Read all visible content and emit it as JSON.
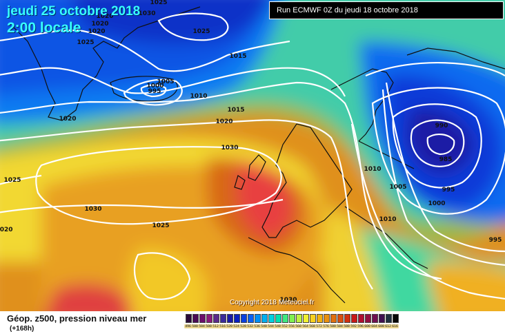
{
  "header": {
    "date": "jeudi 25 octobre 2018",
    "time": "2:00 locale",
    "run": "Run ECMWF 0Z du jeudi 18 octobre 2018"
  },
  "copyright": "Copyright 2018 Meteociel.fr",
  "footer": {
    "title": "Géop. z500, pression niveau mer",
    "subtitle": "(+168h)"
  },
  "legend": {
    "values": [
      "496",
      "500",
      "504",
      "508",
      "512",
      "516",
      "520",
      "524",
      "528",
      "532",
      "536",
      "540",
      "544",
      "548",
      "552",
      "556",
      "560",
      "564",
      "568",
      "572",
      "576",
      "580",
      "584",
      "588",
      "592",
      "596",
      "600",
      "604",
      "608",
      "612",
      "616"
    ],
    "colors": [
      "#2a0a3a",
      "#4b0b55",
      "#6b0f6b",
      "#8a1a7a",
      "#5a2a8a",
      "#3a2a9a",
      "#1a1aa5",
      "#0a20c0",
      "#0a40e0",
      "#0a60f5",
      "#0090f5",
      "#00b0f0",
      "#00d0e0",
      "#00e0b0",
      "#40e880",
      "#80f050",
      "#c0f040",
      "#f0f030",
      "#f8d020",
      "#f0b010",
      "#e89010",
      "#e07010",
      "#d85010",
      "#d03010",
      "#c81818",
      "#b01030",
      "#901040",
      "#701050",
      "#401050",
      "#203040",
      "#080808"
    ]
  },
  "pressure_labels": [
    "1025",
    "1030",
    "1020",
    "1020",
    "1020",
    "1025",
    "1025",
    "1025",
    "1000",
    "1005",
    "995",
    "1010",
    "1015",
    "1015",
    "1020",
    "1030",
    "1020",
    "1030",
    "1025",
    "1020",
    "990",
    "985",
    "1010",
    "1005",
    "995",
    "1000",
    "1010",
    "995",
    "1030"
  ],
  "map_colors": {
    "deep_blue": "#0a3ad8",
    "blue": "#0a6af0",
    "cyan": "#20b8f0",
    "green": "#70e060",
    "yellow": "#f2e030",
    "orange": "#e8a020",
    "dark_orange": "#d06010",
    "red": "#e03030",
    "isobar": "#ffffff",
    "coast": "#101010"
  }
}
